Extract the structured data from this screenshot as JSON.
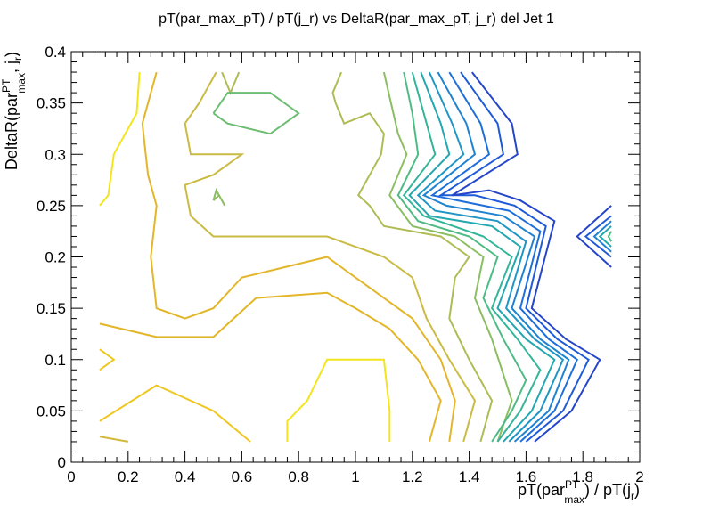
{
  "chart_data": {
    "type": "contour",
    "title": "pT(par_max_pT) / pT(j_r) vs DeltaR(par_max_pT, j_r) del Jet 1",
    "xlabel": {
      "pre": "pT(par",
      "sup": "PT",
      "sub": "max",
      "mid": ") / pT(j",
      "sub2": "r",
      "post": ")"
    },
    "ylabel": {
      "pre": "DeltaR(par",
      "sup": "PT",
      "sub": "max",
      "mid": ", j",
      "sub2": "r",
      "post": ")"
    },
    "xlim": [
      0,
      2
    ],
    "ylim": [
      0,
      0.4
    ],
    "xticks": [
      {
        "value": 0,
        "label": "0"
      },
      {
        "value": 0.2,
        "label": "0.2"
      },
      {
        "value": 0.4,
        "label": "0.4"
      },
      {
        "value": 0.6,
        "label": "0.6"
      },
      {
        "value": 0.8,
        "label": "0.8"
      },
      {
        "value": 1.0,
        "label": "1"
      },
      {
        "value": 1.2,
        "label": "1.2"
      },
      {
        "value": 1.4,
        "label": "1.4"
      },
      {
        "value": 1.6,
        "label": "1.6"
      },
      {
        "value": 1.8,
        "label": "1.8"
      },
      {
        "value": 2.0,
        "label": "2"
      }
    ],
    "yticks": [
      {
        "value": 0,
        "label": "0"
      },
      {
        "value": 0.05,
        "label": "0.05"
      },
      {
        "value": 0.1,
        "label": "0.1"
      },
      {
        "value": 0.15,
        "label": "0.15"
      },
      {
        "value": 0.2,
        "label": "0.2"
      },
      {
        "value": 0.25,
        "label": "0.25"
      },
      {
        "value": 0.3,
        "label": "0.3"
      },
      {
        "value": 0.35,
        "label": "0.35"
      },
      {
        "value": 0.4,
        "label": "0.4"
      }
    ],
    "contours": [
      {
        "color": "#f3e51b",
        "points": [
          [
            0.1,
            0.25
          ],
          [
            0.13,
            0.26
          ],
          [
            0.15,
            0.3
          ],
          [
            0.23,
            0.34
          ],
          [
            0.24,
            0.38
          ]
        ]
      },
      {
        "color": "#f3e51b",
        "points": [
          [
            0.76,
            0.02
          ],
          [
            0.76,
            0.04
          ],
          [
            0.83,
            0.06
          ],
          [
            0.9,
            0.1
          ],
          [
            1.1,
            0.1
          ],
          [
            1.12,
            0.05
          ],
          [
            1.12,
            0.02
          ]
        ]
      },
      {
        "color": "#efc71f",
        "points": [
          [
            0.1,
            0.11
          ],
          [
            0.15,
            0.1
          ],
          [
            0.1,
            0.09
          ]
        ]
      },
      {
        "color": "#efc71f",
        "points": [
          [
            0.1,
            0.04
          ],
          [
            0.3,
            0.075
          ],
          [
            0.5,
            0.05
          ],
          [
            0.63,
            0.02
          ]
        ]
      },
      {
        "color": "#e3b629",
        "points": [
          [
            0.1,
            0.135
          ],
          [
            0.3,
            0.122
          ],
          [
            0.5,
            0.122
          ],
          [
            0.65,
            0.16
          ],
          [
            0.9,
            0.165
          ],
          [
            1.0,
            0.15
          ],
          [
            1.12,
            0.13
          ],
          [
            1.22,
            0.1
          ],
          [
            1.3,
            0.06
          ],
          [
            1.26,
            0.02
          ]
        ]
      },
      {
        "color": "#e3b629",
        "points": [
          [
            0.3,
            0.38
          ],
          [
            0.25,
            0.33
          ],
          [
            0.27,
            0.28
          ],
          [
            0.3,
            0.25
          ],
          [
            0.28,
            0.2
          ],
          [
            0.3,
            0.15
          ],
          [
            0.4,
            0.14
          ],
          [
            0.5,
            0.15
          ],
          [
            0.6,
            0.18
          ],
          [
            0.9,
            0.2
          ],
          [
            1.0,
            0.18
          ],
          [
            1.1,
            0.16
          ],
          [
            1.2,
            0.14
          ],
          [
            1.3,
            0.1
          ],
          [
            1.35,
            0.06
          ],
          [
            1.33,
            0.02
          ]
        ]
      },
      {
        "color": "#d4b838",
        "points": [
          [
            0.1,
            0.025
          ],
          [
            0.2,
            0.02
          ]
        ]
      },
      {
        "color": "#c9bb43",
        "points": [
          [
            0.51,
            0.38
          ],
          [
            0.45,
            0.35
          ],
          [
            0.4,
            0.33
          ],
          [
            0.42,
            0.3
          ],
          [
            0.52,
            0.3
          ],
          [
            0.6,
            0.3
          ],
          [
            0.5,
            0.28
          ],
          [
            0.4,
            0.27
          ],
          [
            0.42,
            0.24
          ],
          [
            0.5,
            0.22
          ],
          [
            0.9,
            0.22
          ],
          [
            1.1,
            0.2
          ],
          [
            1.2,
            0.18
          ],
          [
            1.25,
            0.14
          ],
          [
            1.33,
            0.1
          ],
          [
            1.42,
            0.06
          ],
          [
            1.38,
            0.02
          ]
        ]
      },
      {
        "color": "#afbc53",
        "points": [
          [
            0.53,
            0.38
          ],
          [
            0.56,
            0.36
          ],
          [
            0.59,
            0.38
          ]
        ]
      },
      {
        "color": "#afbc53",
        "points": [
          [
            0.95,
            0.38
          ],
          [
            0.92,
            0.36
          ],
          [
            0.93,
            0.35
          ],
          [
            0.96,
            0.33
          ],
          [
            1.05,
            0.34
          ],
          [
            1.1,
            0.32
          ],
          [
            1.09,
            0.3
          ],
          [
            1.01,
            0.26
          ],
          [
            1.05,
            0.25
          ],
          [
            1.1,
            0.23
          ],
          [
            1.3,
            0.22
          ],
          [
            1.4,
            0.2
          ],
          [
            1.35,
            0.18
          ],
          [
            1.33,
            0.14
          ],
          [
            1.4,
            0.1
          ],
          [
            1.48,
            0.06
          ],
          [
            1.44,
            0.02
          ]
        ]
      },
      {
        "color": "#8bbe62",
        "points": [
          [
            0.5,
            0.255
          ],
          [
            0.52,
            0.26
          ],
          [
            0.54,
            0.25
          ],
          [
            0.51,
            0.265
          ],
          [
            0.5,
            0.255
          ]
        ]
      },
      {
        "color": "#8bbe62",
        "points": [
          [
            1.1,
            0.38
          ],
          [
            1.15,
            0.32
          ],
          [
            1.18,
            0.3
          ],
          [
            1.12,
            0.26
          ],
          [
            1.2,
            0.23
          ],
          [
            1.35,
            0.22
          ],
          [
            1.45,
            0.2
          ],
          [
            1.42,
            0.16
          ],
          [
            1.48,
            0.12
          ],
          [
            1.55,
            0.06
          ],
          [
            1.5,
            0.02
          ]
        ]
      },
      {
        "color": "#6cbd72",
        "points": [
          [
            0.5,
            0.34
          ],
          [
            0.55,
            0.36
          ],
          [
            0.7,
            0.36
          ],
          [
            0.8,
            0.34
          ],
          [
            0.75,
            0.33
          ],
          [
            0.7,
            0.32
          ],
          [
            0.55,
            0.33
          ],
          [
            0.5,
            0.34
          ]
        ]
      },
      {
        "color": "#4ebb84",
        "points": [
          [
            1.17,
            0.38
          ],
          [
            1.2,
            0.34
          ],
          [
            1.22,
            0.3
          ],
          [
            1.15,
            0.26
          ],
          [
            1.22,
            0.235
          ],
          [
            1.4,
            0.22
          ],
          [
            1.5,
            0.2
          ],
          [
            1.45,
            0.16
          ],
          [
            1.52,
            0.12
          ],
          [
            1.6,
            0.08
          ],
          [
            1.55,
            0.05
          ],
          [
            1.48,
            0.02
          ]
        ]
      },
      {
        "color": "#33b59a",
        "points": [
          [
            1.2,
            0.38
          ],
          [
            1.25,
            0.33
          ],
          [
            1.28,
            0.3
          ],
          [
            1.17,
            0.26
          ],
          [
            1.24,
            0.24
          ],
          [
            1.45,
            0.22
          ],
          [
            1.55,
            0.2
          ],
          [
            1.48,
            0.15
          ],
          [
            1.57,
            0.12
          ],
          [
            1.65,
            0.09
          ],
          [
            1.58,
            0.05
          ],
          [
            1.5,
            0.02
          ]
        ]
      },
      {
        "color": "#25a7b0",
        "points": [
          [
            1.23,
            0.38
          ],
          [
            1.3,
            0.33
          ],
          [
            1.33,
            0.3
          ],
          [
            1.19,
            0.26
          ],
          [
            1.26,
            0.24
          ],
          [
            1.48,
            0.23
          ],
          [
            1.58,
            0.21
          ],
          [
            1.5,
            0.15
          ],
          [
            1.6,
            0.12
          ],
          [
            1.7,
            0.1
          ],
          [
            1.62,
            0.05
          ],
          [
            1.52,
            0.02
          ]
        ]
      },
      {
        "color": "#2096c5",
        "points": [
          [
            1.26,
            0.38
          ],
          [
            1.34,
            0.33
          ],
          [
            1.38,
            0.3
          ],
          [
            1.22,
            0.26
          ],
          [
            1.28,
            0.245
          ],
          [
            1.5,
            0.235
          ],
          [
            1.6,
            0.215
          ],
          [
            1.53,
            0.15
          ],
          [
            1.63,
            0.12
          ],
          [
            1.73,
            0.1
          ],
          [
            1.65,
            0.05
          ],
          [
            1.54,
            0.02
          ]
        ]
      },
      {
        "color": "#1f83d1",
        "points": [
          [
            1.29,
            0.38
          ],
          [
            1.39,
            0.33
          ],
          [
            1.42,
            0.3
          ],
          [
            1.24,
            0.26
          ],
          [
            1.32,
            0.25
          ],
          [
            1.52,
            0.24
          ],
          [
            1.63,
            0.22
          ],
          [
            1.55,
            0.15
          ],
          [
            1.65,
            0.12
          ],
          [
            1.75,
            0.1
          ],
          [
            1.68,
            0.05
          ],
          [
            1.56,
            0.02
          ]
        ]
      },
      {
        "color": "#1e6fd9",
        "points": [
          [
            1.33,
            0.38
          ],
          [
            1.44,
            0.33
          ],
          [
            1.47,
            0.3
          ],
          [
            1.27,
            0.26
          ],
          [
            1.36,
            0.255
          ],
          [
            1.54,
            0.245
          ],
          [
            1.65,
            0.225
          ],
          [
            1.58,
            0.15
          ],
          [
            1.68,
            0.12
          ],
          [
            1.78,
            0.1
          ],
          [
            1.7,
            0.05
          ],
          [
            1.58,
            0.02
          ]
        ]
      },
      {
        "color": "#1f5ad8",
        "points": [
          [
            1.37,
            0.38
          ],
          [
            1.5,
            0.33
          ],
          [
            1.52,
            0.3
          ],
          [
            1.3,
            0.26
          ],
          [
            1.42,
            0.26
          ],
          [
            1.56,
            0.25
          ],
          [
            1.67,
            0.23
          ],
          [
            1.6,
            0.15
          ],
          [
            1.71,
            0.12
          ],
          [
            1.82,
            0.1
          ],
          [
            1.73,
            0.05
          ],
          [
            1.6,
            0.02
          ]
        ]
      },
      {
        "color": "#2546c9",
        "points": [
          [
            1.41,
            0.38
          ],
          [
            1.55,
            0.33
          ],
          [
            1.57,
            0.3
          ],
          [
            1.34,
            0.26
          ],
          [
            1.47,
            0.265
          ],
          [
            1.58,
            0.255
          ],
          [
            1.7,
            0.235
          ],
          [
            1.62,
            0.15
          ],
          [
            1.74,
            0.12
          ],
          [
            1.86,
            0.1
          ],
          [
            1.76,
            0.05
          ],
          [
            1.63,
            0.02
          ]
        ]
      },
      {
        "color": "#2546c9",
        "points": [
          [
            1.9,
            0.25
          ],
          [
            1.78,
            0.22
          ],
          [
            1.9,
            0.19
          ]
        ]
      },
      {
        "color": "#1f5ad8",
        "points": [
          [
            1.9,
            0.24
          ],
          [
            1.81,
            0.22
          ],
          [
            1.9,
            0.2
          ]
        ]
      },
      {
        "color": "#1f83d1",
        "points": [
          [
            1.9,
            0.235
          ],
          [
            1.84,
            0.22
          ],
          [
            1.9,
            0.205
          ]
        ]
      },
      {
        "color": "#25a7b0",
        "points": [
          [
            1.9,
            0.23
          ],
          [
            1.86,
            0.22
          ],
          [
            1.9,
            0.21
          ]
        ]
      },
      {
        "color": "#4ebb84",
        "points": [
          [
            1.9,
            0.225
          ],
          [
            1.89,
            0.22
          ],
          [
            1.9,
            0.215
          ]
        ]
      }
    ]
  }
}
